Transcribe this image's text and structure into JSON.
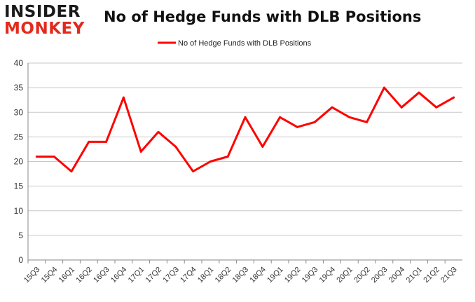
{
  "logo": {
    "line1": "INSIDER",
    "line2": "MONKEY"
  },
  "colors": {
    "line": "#ff0000",
    "grid": "#c8c8c8",
    "axis": "#888888",
    "logo_red": "#e32a1c"
  },
  "chart_data": {
    "type": "line",
    "title": "No of Hedge Funds with DLB Positions",
    "xlabel": "",
    "ylabel": "",
    "ylim": [
      0,
      40
    ],
    "yticks": [
      0,
      5,
      10,
      15,
      20,
      25,
      30,
      35,
      40
    ],
    "grid": true,
    "legend": "top-center",
    "categories": [
      "15Q3",
      "15Q4",
      "16Q1",
      "16Q2",
      "16Q3",
      "16Q4",
      "17Q1",
      "17Q2",
      "17Q3",
      "17Q4",
      "18Q1",
      "18Q2",
      "18Q3",
      "18Q4",
      "19Q1",
      "19Q2",
      "19Q3",
      "19Q4",
      "20Q1",
      "20Q2",
      "20Q3",
      "20Q4",
      "21Q1",
      "21Q2",
      "21Q3"
    ],
    "series": [
      {
        "name": "No of Hedge Funds with DLB Positions",
        "values": [
          21,
          21,
          18,
          24,
          24,
          33,
          22,
          26,
          23,
          18,
          20,
          21,
          29,
          23,
          29,
          27,
          28,
          31,
          29,
          28,
          35,
          31,
          34,
          31,
          33
        ]
      }
    ]
  }
}
